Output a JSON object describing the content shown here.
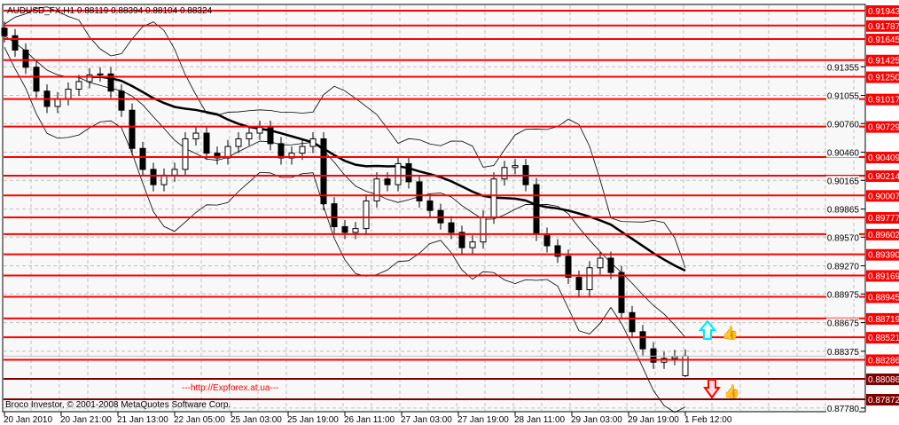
{
  "window": {
    "title": "AUDUSD_FX,H1  0.88119 0.88394 0.88104 0.88324",
    "watermark": "---http://Expforex.at.ua---",
    "copyright": "Broco Investor, © 2001-2008 MetaQuotes Software Corp."
  },
  "colors": {
    "background": "#f8f8f8",
    "level_red": "#ff0000",
    "level_dark": "#800000",
    "candles": "#000000",
    "grid": "#c0c0c0",
    "up_arrow": "#00e5ff",
    "down_arrow": "#ff0000",
    "thumb": "#00d0e0"
  },
  "icons": {
    "buy_signal": "up-arrow-icon",
    "sell_signal": "down-arrow-icon",
    "buy_thumb": "thumbs-up-icon",
    "sell_thumb": "thumbs-up-icon"
  },
  "chart_data": {
    "type": "candlestick",
    "symbol": "AUDUSD_FX",
    "timeframe": "H1",
    "last_bar": {
      "open": 0.88119,
      "high": 0.88394,
      "low": 0.88104,
      "close": 0.88324
    },
    "ylim": [
      0.8774,
      0.92
    ],
    "grid": true,
    "indicators": [
      "moving-average",
      "bollinger-bands"
    ],
    "x_tick_labels": [
      "20 Jan 2010",
      "20 Jan 21:00",
      "21 Jan 13:00",
      "22 Jan 05:00",
      "25 Jan 03:00",
      "25 Jan 19:00",
      "26 Jan 11:00",
      "27 Jan 03:00",
      "27 Jan 19:00",
      "28 Jan 11:00",
      "29 Jan 03:00",
      "29 Jan 19:00",
      "1 Feb 12:00"
    ],
    "y_tick_labels": [
      "0.91355",
      "0.91055",
      "0.90760",
      "0.90460",
      "0.90165",
      "0.89865",
      "0.89570",
      "0.89270",
      "0.88975",
      "0.88675",
      "0.88375",
      "0.87780"
    ],
    "closes": [
      0.9168,
      0.9153,
      0.9135,
      0.911,
      0.9094,
      0.9102,
      0.9112,
      0.912,
      0.9127,
      0.9128,
      0.911,
      0.909,
      0.905,
      0.9028,
      0.9012,
      0.9022,
      0.9028,
      0.906,
      0.9066,
      0.9045,
      0.904,
      0.9052,
      0.906,
      0.9066,
      0.9072,
      0.9055,
      0.904,
      0.9045,
      0.9052,
      0.906,
      0.8992,
      0.8968,
      0.8962,
      0.8966,
      0.8995,
      0.9018,
      0.9012,
      0.9034,
      0.9015,
      0.8995,
      0.8985,
      0.8972,
      0.8962,
      0.8946,
      0.8952,
      0.8978,
      0.9018,
      0.903,
      0.9032,
      0.9012,
      0.896,
      0.8948,
      0.8937,
      0.8915,
      0.8902,
      0.8925,
      0.8935,
      0.892,
      0.8878,
      0.8858,
      0.884,
      0.8826,
      0.883,
      0.8832,
      0.88324
    ],
    "levels": [
      {
        "price": 0.91943,
        "label": "0.91943",
        "style": "red"
      },
      {
        "price": 0.91787,
        "label": "0.91787",
        "style": "red"
      },
      {
        "price": 0.91645,
        "label": "0.91645",
        "style": "red"
      },
      {
        "price": 0.91425,
        "label": "0.91425",
        "style": "red"
      },
      {
        "price": 0.9125,
        "label": "0.91250",
        "style": "red"
      },
      {
        "price": 0.91017,
        "label": "0.91017",
        "style": "red"
      },
      {
        "price": 0.90729,
        "label": "0.90729",
        "style": "red"
      },
      {
        "price": 0.90409,
        "label": "0.90409",
        "style": "red"
      },
      {
        "price": 0.90214,
        "label": "0.90214",
        "style": "red"
      },
      {
        "price": 0.90007,
        "label": "0.90007",
        "style": "red"
      },
      {
        "price": 0.89777,
        "label": "0.89777",
        "style": "red"
      },
      {
        "price": 0.89602,
        "label": "0.89602",
        "style": "red"
      },
      {
        "price": 0.8939,
        "label": "0.89390",
        "style": "red"
      },
      {
        "price": 0.89169,
        "label": "0.89169",
        "style": "red"
      },
      {
        "price": 0.88945,
        "label": "0.88945",
        "style": "red"
      },
      {
        "price": 0.88719,
        "label": "0.88719",
        "style": "red"
      },
      {
        "price": 0.88521,
        "label": "0.88521",
        "style": "red"
      },
      {
        "price": 0.88286,
        "label": "0.88286",
        "style": "red"
      },
      {
        "price": 0.88086,
        "label": "0.88086",
        "style": "dark"
      },
      {
        "price": 0.87872,
        "label": "0.87872",
        "style": "dark"
      }
    ],
    "current_price_label": "0.88324"
  }
}
